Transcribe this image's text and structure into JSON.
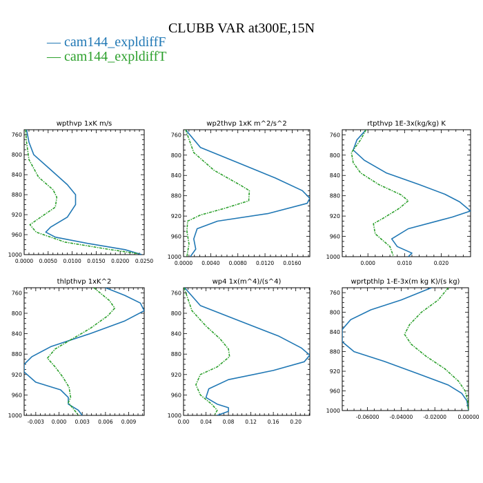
{
  "figure": {
    "title": "CLUBB VAR at300E,15N",
    "legend": [
      {
        "label": "— cam144_expldiffF",
        "color": "#1f77b4"
      },
      {
        "label": "— cam144_expldiffT",
        "color": "#2ca02c"
      }
    ]
  },
  "chart_data": [
    {
      "type": "line",
      "title": "wpthvp  1xK m/s",
      "xlim": [
        0,
        0.025
      ],
      "ylim": [
        1000,
        750
      ],
      "y_inverted": true,
      "xticks": [
        0,
        0.005,
        0.01,
        0.015,
        0.02,
        0.025
      ],
      "xtick_labels": [
        "0.0000",
        "0.0050",
        "0.0100",
        "0.0150",
        "0.0200",
        "0.0250"
      ],
      "yticks": [
        760,
        800,
        840,
        880,
        920,
        960,
        1000
      ],
      "series": [
        {
          "name": "cam144_expldiffF",
          "color": "#1f77b4",
          "dashed": false,
          "points": [
            [
              0.0005,
              750
            ],
            [
              0.001,
              775
            ],
            [
              0.002,
              800
            ],
            [
              0.0055,
              830
            ],
            [
              0.009,
              860
            ],
            [
              0.0107,
              880
            ],
            [
              0.0107,
              900
            ],
            [
              0.009,
              925
            ],
            [
              0.0055,
              945
            ],
            [
              0.0045,
              955
            ],
            [
              0.0065,
              965
            ],
            [
              0.0135,
              978
            ],
            [
              0.021,
              990
            ],
            [
              0.0245,
              1000
            ]
          ]
        },
        {
          "name": "cam144_expldiffT",
          "color": "#2ca02c",
          "dashed": true,
          "points": [
            [
              0.0003,
              750
            ],
            [
              0.0005,
              775
            ],
            [
              0.001,
              810
            ],
            [
              0.003,
              845
            ],
            [
              0.006,
              870
            ],
            [
              0.0068,
              885
            ],
            [
              0.0065,
              905
            ],
            [
              0.003,
              928
            ],
            [
              0.0012,
              940
            ],
            [
              0.0025,
              955
            ],
            [
              0.0085,
              975
            ],
            [
              0.018,
              990
            ],
            [
              0.0238,
              998
            ]
          ]
        }
      ]
    },
    {
      "type": "line",
      "title": "wp2thvp  1xK m^2/s^2",
      "xlim": [
        0,
        0.0186
      ],
      "ylim": [
        1000,
        750
      ],
      "y_inverted": true,
      "xticks": [
        0,
        0.004,
        0.008,
        0.012,
        0.016
      ],
      "xtick_labels": [
        "0.0000",
        "0.0040",
        "0.0080",
        "0.0120",
        "0.0160"
      ],
      "yticks": [
        760,
        800,
        840,
        880,
        920,
        960,
        1000
      ],
      "series": [
        {
          "name": "cam144_expldiffF",
          "color": "#1f77b4",
          "dashed": false,
          "points": [
            [
              0.0003,
              750
            ],
            [
              0.0025,
              785
            ],
            [
              0.008,
              815
            ],
            [
              0.0135,
              845
            ],
            [
              0.0175,
              870
            ],
            [
              0.0186,
              885
            ],
            [
              0.0182,
              895
            ],
            [
              0.0125,
              915
            ],
            [
              0.005,
              930
            ],
            [
              0.002,
              945
            ],
            [
              0.0015,
              965
            ],
            [
              0.0018,
              985
            ],
            [
              0.001,
              1000
            ]
          ]
        },
        {
          "name": "cam144_expldiffT",
          "color": "#2ca02c",
          "dashed": true,
          "points": [
            [
              0.0003,
              750
            ],
            [
              0.0015,
              795
            ],
            [
              0.0045,
              830
            ],
            [
              0.0085,
              860
            ],
            [
              0.0097,
              870
            ],
            [
              0.0096,
              890
            ],
            [
              0.006,
              905
            ],
            [
              0.0025,
              918
            ],
            [
              0.0006,
              930
            ],
            [
              0.0005,
              950
            ],
            [
              0.0008,
              975
            ],
            [
              0.0005,
              1000
            ]
          ]
        }
      ]
    },
    {
      "type": "line",
      "title": "rtpthvp  1E-3x(kg/kg) K",
      "xlim": [
        -0.007,
        0.028
      ],
      "ylim": [
        1000,
        750
      ],
      "y_inverted": true,
      "xticks": [
        0,
        0.01,
        0.02
      ],
      "xtick_labels": [
        "0.000",
        "0.010",
        "0.020"
      ],
      "yticks": [
        760,
        800,
        840,
        880,
        920,
        960,
        1000
      ],
      "series": [
        {
          "name": "cam144_expldiffF",
          "color": "#1f77b4",
          "dashed": false,
          "points": [
            [
              -0.0005,
              750
            ],
            [
              -0.003,
              770
            ],
            [
              -0.004,
              790
            ],
            [
              -0.001,
              810
            ],
            [
              0.005,
              835
            ],
            [
              0.014,
              858
            ],
            [
              0.021,
              877
            ],
            [
              0.025,
              892
            ],
            [
              0.028,
              910
            ],
            [
              0.023,
              922
            ],
            [
              0.011,
              945
            ],
            [
              0.0065,
              965
            ],
            [
              0.008,
              980
            ],
            [
              0.012,
              993
            ],
            [
              0.011,
              1000
            ]
          ]
        },
        {
          "name": "cam144_expldiffT",
          "color": "#2ca02c",
          "dashed": true,
          "points": [
            [
              -0.0005,
              750
            ],
            [
              -0.002,
              770
            ],
            [
              -0.0045,
              795
            ],
            [
              -0.004,
              815
            ],
            [
              -0.002,
              835
            ],
            [
              0.003,
              858
            ],
            [
              0.009,
              878
            ],
            [
              0.011,
              890
            ],
            [
              0.0085,
              905
            ],
            [
              0.004,
              925
            ],
            [
              0.0015,
              935
            ],
            [
              0.002,
              955
            ],
            [
              0.006,
              980
            ],
            [
              0.007,
              1000
            ]
          ]
        }
      ]
    },
    {
      "type": "line",
      "title": "thlpthvp  1xK^2",
      "xlim": [
        -0.0045,
        0.011
      ],
      "ylim": [
        1000,
        750
      ],
      "y_inverted": true,
      "xticks": [
        -0.003,
        0,
        0.003,
        0.006,
        0.009
      ],
      "xtick_labels": [
        "-0.003",
        "0.000",
        "0.003",
        "0.006",
        "0.009"
      ],
      "yticks": [
        760,
        800,
        840,
        880,
        920,
        960,
        1000
      ],
      "series": [
        {
          "name": "cam144_expldiffF",
          "color": "#1f77b4",
          "dashed": false,
          "points": [
            [
              0.006,
              750
            ],
            [
              0.0085,
              765
            ],
            [
              0.0105,
              780
            ],
            [
              0.011,
              795
            ],
            [
              0.0085,
              815
            ],
            [
              0.004,
              840
            ],
            [
              -0.001,
              865
            ],
            [
              -0.0035,
              885
            ],
            [
              -0.0045,
              900
            ],
            [
              -0.0045,
              915
            ],
            [
              -0.003,
              935
            ],
            [
              0.0002,
              950
            ],
            [
              0.0012,
              965
            ],
            [
              0.0012,
              978
            ],
            [
              0.0025,
              990
            ],
            [
              0.003,
              1000
            ]
          ]
        },
        {
          "name": "cam144_expldiffT",
          "color": "#2ca02c",
          "dashed": true,
          "points": [
            [
              0.0045,
              750
            ],
            [
              0.0065,
              775
            ],
            [
              0.0072,
              790
            ],
            [
              0.0063,
              805
            ],
            [
              0.004,
              830
            ],
            [
              0.0015,
              852
            ],
            [
              -0.0005,
              870
            ],
            [
              -0.0015,
              888
            ],
            [
              -0.0005,
              905
            ],
            [
              0.0005,
              925
            ],
            [
              0.0013,
              945
            ],
            [
              0.0015,
              965
            ],
            [
              0.0012,
              975
            ],
            [
              0.002,
              990
            ],
            [
              0.0025,
              1000
            ]
          ]
        }
      ]
    },
    {
      "type": "line",
      "title": "wp4  1x(m^4)/(s^4)",
      "xlim": [
        0,
        0.225
      ],
      "ylim": [
        1000,
        750
      ],
      "y_inverted": true,
      "xticks": [
        0,
        0.04,
        0.08,
        0.12,
        0.16,
        0.2
      ],
      "xtick_labels": [
        "0.00",
        "0.04",
        "0.08",
        "0.12",
        "0.16",
        "0.20"
      ],
      "yticks": [
        760,
        800,
        840,
        880,
        920,
        960,
        1000
      ],
      "series": [
        {
          "name": "cam144_expldiffF",
          "color": "#1f77b4",
          "dashed": false,
          "points": [
            [
              0.002,
              750
            ],
            [
              0.03,
              785
            ],
            [
              0.1,
              815
            ],
            [
              0.17,
              845
            ],
            [
              0.21,
              868
            ],
            [
              0.225,
              882
            ],
            [
              0.215,
              895
            ],
            [
              0.16,
              912
            ],
            [
              0.08,
              930
            ],
            [
              0.045,
              948
            ],
            [
              0.04,
              965
            ],
            [
              0.06,
              978
            ],
            [
              0.08,
              985
            ],
            [
              0.08,
              992
            ],
            [
              0.06,
              1000
            ]
          ]
        },
        {
          "name": "cam144_expldiffT",
          "color": "#2ca02c",
          "dashed": true,
          "points": [
            [
              0.001,
              750
            ],
            [
              0.015,
              795
            ],
            [
              0.04,
              825
            ],
            [
              0.065,
              850
            ],
            [
              0.08,
              870
            ],
            [
              0.082,
              885
            ],
            [
              0.06,
              905
            ],
            [
              0.03,
              920
            ],
            [
              0.022,
              940
            ],
            [
              0.03,
              960
            ],
            [
              0.05,
              978
            ],
            [
              0.06,
              990
            ],
            [
              0.055,
              1000
            ]
          ]
        }
      ]
    },
    {
      "type": "line",
      "title": "wprtpthlp  1-E-3x(m kg K)/(s kg)",
      "xlim": [
        -0.075,
        0
      ],
      "ylim": [
        1000,
        750
      ],
      "y_inverted": true,
      "xticks": [
        -0.06,
        -0.04,
        -0.02,
        0
      ],
      "xtick_labels": [
        "-0.06000",
        "-0.04000",
        "-0.02000",
        "0.00000"
      ],
      "yticks": [
        760,
        800,
        840,
        880,
        920,
        960,
        1000
      ],
      "series": [
        {
          "name": "cam144_expldiffF",
          "color": "#1f77b4",
          "dashed": false,
          "points": [
            [
              -0.022,
              750
            ],
            [
              -0.04,
              775
            ],
            [
              -0.058,
              795
            ],
            [
              -0.07,
              815
            ],
            [
              -0.075,
              835
            ],
            [
              -0.075,
              860
            ],
            [
              -0.068,
              880
            ],
            [
              -0.05,
              900
            ],
            [
              -0.03,
              925
            ],
            [
              -0.012,
              948
            ],
            [
              -0.004,
              965
            ],
            [
              -0.001,
              980
            ],
            [
              0,
              1000
            ]
          ]
        },
        {
          "name": "cam144_expldiffT",
          "color": "#2ca02c",
          "dashed": true,
          "points": [
            [
              -0.012,
              750
            ],
            [
              -0.018,
              775
            ],
            [
              -0.028,
              800
            ],
            [
              -0.035,
              825
            ],
            [
              -0.038,
              845
            ],
            [
              -0.034,
              865
            ],
            [
              -0.025,
              890
            ],
            [
              -0.014,
              915
            ],
            [
              -0.006,
              940
            ],
            [
              -0.002,
              960
            ],
            [
              -0.0005,
              980
            ],
            [
              0,
              1000
            ]
          ]
        }
      ]
    }
  ]
}
